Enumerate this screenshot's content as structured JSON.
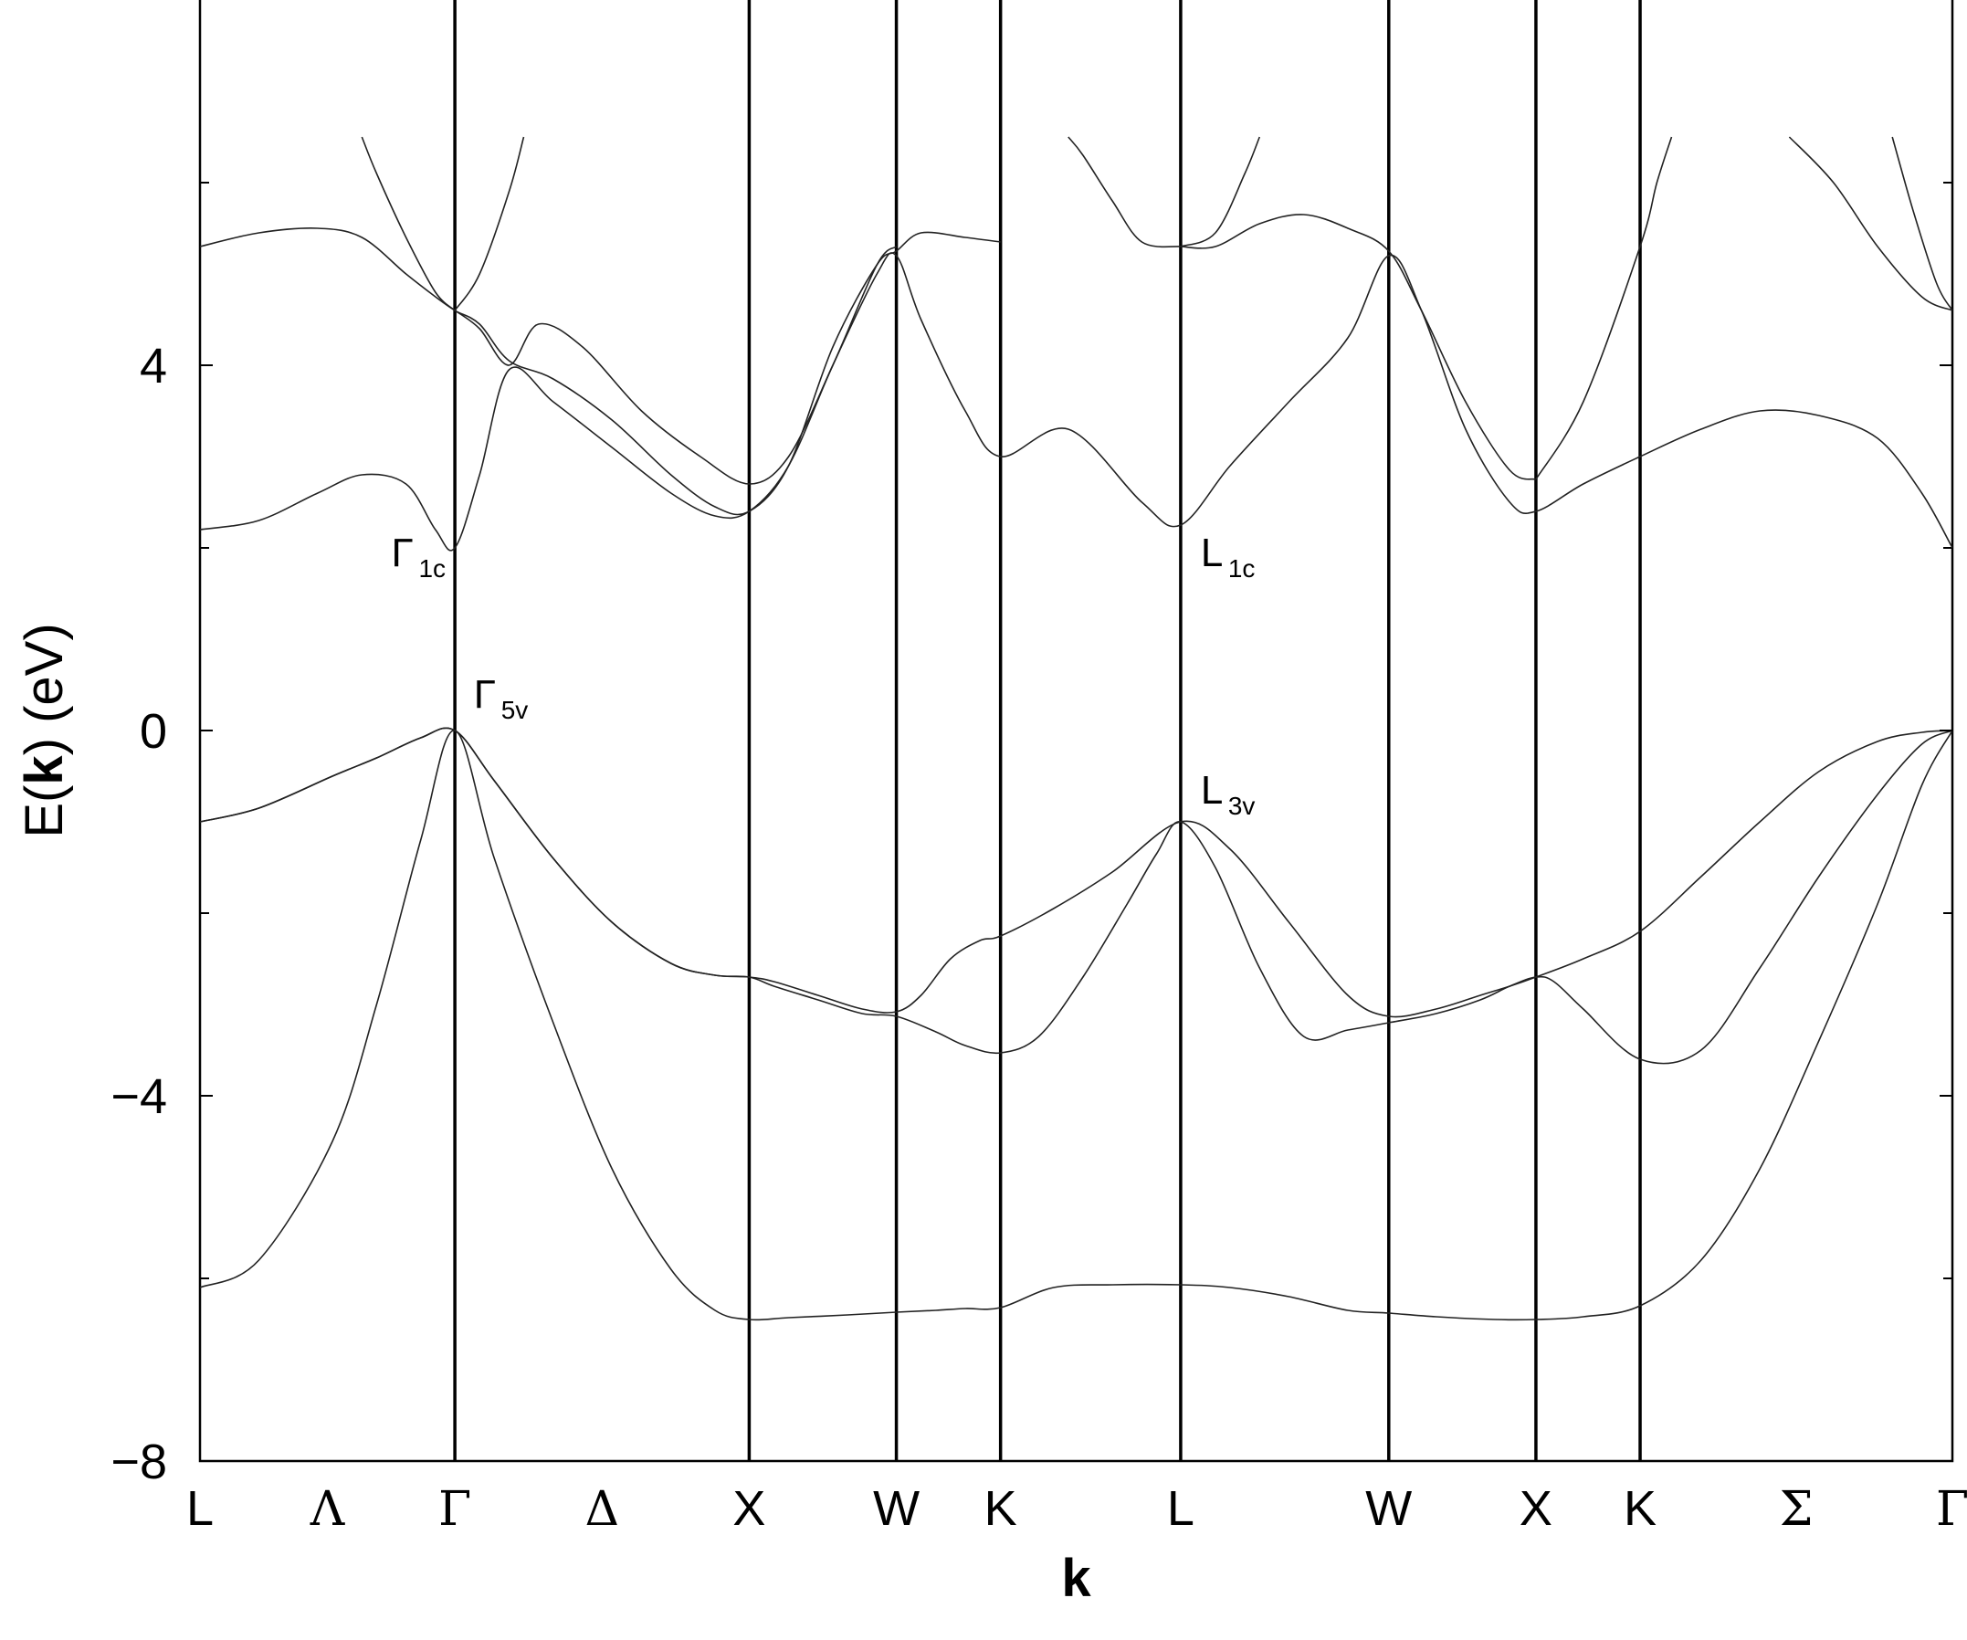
{
  "chart_data": {
    "type": "line",
    "title": "",
    "xlabel": "k",
    "ylabel": "E(k)  (eV)",
    "ylabel_parts": {
      "prefix": "E(",
      "bold": "k",
      "suffix": ")  (eV)"
    },
    "ylim": [
      -8,
      8
    ],
    "yticks": [
      {
        "value": 4,
        "label": "4"
      },
      {
        "value": 0,
        "label": "0"
      },
      {
        "value": -4,
        "label": "−4"
      },
      {
        "value": -8,
        "label": "−8"
      }
    ],
    "yminor": [
      6,
      2,
      -2,
      -6
    ],
    "grid": false,
    "legend": "none",
    "kpoints": [
      {
        "x": 0.0,
        "label": "L",
        "line": false
      },
      {
        "x": 0.866,
        "label": "Γ",
        "line": true
      },
      {
        "x": 1.866,
        "label": "X",
        "line": true
      },
      {
        "x": 2.366,
        "label": "W",
        "line": true
      },
      {
        "x": 2.72,
        "label": "K",
        "line": true
      },
      {
        "x": 3.332,
        "label": "L",
        "line": true
      },
      {
        "x": 4.039,
        "label": "W",
        "line": true
      },
      {
        "x": 4.539,
        "label": "X",
        "line": true
      },
      {
        "x": 4.893,
        "label": "K",
        "line": true
      },
      {
        "x": 5.954,
        "label": "Γ",
        "line": false
      }
    ],
    "symmetry_labels": [
      {
        "x": 0.433,
        "label": "Λ"
      },
      {
        "x": 1.366,
        "label": "Δ"
      },
      {
        "x": 5.424,
        "label": "Σ"
      }
    ],
    "annotations": [
      {
        "main": "Γ",
        "sub": "1c",
        "x": 0.65,
        "y": 1.8
      },
      {
        "main": "Γ",
        "sub": "5v",
        "x": 0.93,
        "y": 0.25
      },
      {
        "main": "L",
        "sub": "1c",
        "x": 3.4,
        "y": 1.8
      },
      {
        "main": "L",
        "sub": "3v",
        "x": 3.4,
        "y": -0.8
      }
    ],
    "series": [
      {
        "x": [
          0,
          0.2,
          0.45,
          0.6,
          0.75,
          0.866,
          1.0,
          1.2,
          1.4,
          1.6,
          1.75,
          1.866,
          2.0,
          2.2,
          2.366,
          2.5,
          2.6,
          2.72,
          2.9,
          3.1,
          3.332,
          3.5,
          3.7,
          3.9,
          4.039,
          4.2,
          4.4,
          4.539,
          4.7,
          4.893,
          5.1,
          5.3,
          5.5,
          5.7,
          5.85,
          5.954
        ],
        "y": [
          -6.1,
          -5.8,
          -4.5,
          -3.0,
          -1.2,
          0.0,
          -1.4,
          -3.2,
          -4.8,
          -5.9,
          -6.35,
          -6.45,
          -6.43,
          -6.4,
          -6.37,
          -6.35,
          -6.33,
          -6.32,
          -6.1,
          -6.07,
          -6.07,
          -6.1,
          -6.2,
          -6.35,
          -6.38,
          -6.42,
          -6.45,
          -6.45,
          -6.42,
          -6.3,
          -5.8,
          -4.8,
          -3.4,
          -1.9,
          -0.6,
          0.0
        ]
      },
      {
        "x": [
          0,
          0.2,
          0.45,
          0.6,
          0.75,
          0.866,
          1.0,
          1.2,
          1.4,
          1.6,
          1.75,
          1.866,
          1.95,
          2.1,
          2.25,
          2.366,
          2.5,
          2.6,
          2.72,
          2.85,
          3.0,
          3.15,
          3.25,
          3.332,
          3.45,
          3.6,
          3.75,
          3.9,
          4.039,
          4.2,
          4.35,
          4.45,
          4.539,
          4.6,
          4.7,
          4.893,
          5.1,
          5.3,
          5.5,
          5.7,
          5.85,
          5.954
        ],
        "y": [
          -1.0,
          -0.85,
          -0.5,
          -0.3,
          -0.08,
          0.0,
          -0.55,
          -1.4,
          -2.1,
          -2.55,
          -2.68,
          -2.7,
          -2.8,
          -2.95,
          -3.1,
          -3.13,
          -3.3,
          -3.45,
          -3.53,
          -3.35,
          -2.7,
          -1.9,
          -1.35,
          -1.0,
          -1.5,
          -2.6,
          -3.35,
          -3.28,
          -3.2,
          -3.1,
          -2.95,
          -2.8,
          -2.7,
          -2.75,
          -3.05,
          -3.6,
          -3.5,
          -2.6,
          -1.6,
          -0.7,
          -0.15,
          0.0
        ]
      },
      {
        "x": [
          0,
          0.2,
          0.45,
          0.6,
          0.75,
          0.866,
          1.0,
          1.2,
          1.4,
          1.6,
          1.75,
          1.866,
          1.95,
          2.1,
          2.25,
          2.366,
          2.45,
          2.55,
          2.65,
          2.72,
          2.9,
          3.1,
          3.332,
          3.5,
          3.7,
          3.9,
          4.039,
          4.2,
          4.35,
          4.45,
          4.539,
          4.7,
          4.893,
          5.1,
          5.3,
          5.5,
          5.7,
          5.85,
          5.954
        ],
        "y": [
          -1.0,
          -0.85,
          -0.5,
          -0.3,
          -0.08,
          0.0,
          -0.55,
          -1.4,
          -2.1,
          -2.55,
          -2.68,
          -2.7,
          -2.75,
          -2.9,
          -3.05,
          -3.08,
          -2.9,
          -2.5,
          -2.3,
          -2.25,
          -1.95,
          -1.55,
          -1.0,
          -1.3,
          -2.1,
          -2.9,
          -3.13,
          -3.05,
          -2.9,
          -2.8,
          -2.7,
          -2.5,
          -2.2,
          -1.6,
          -1.0,
          -0.45,
          -0.12,
          -0.02,
          0.0
        ]
      },
      {
        "x": [
          0,
          0.2,
          0.4,
          0.55,
          0.7,
          0.8,
          0.866,
          0.95,
          1.05,
          1.2,
          1.4,
          1.6,
          1.75,
          1.866,
          2.0,
          2.15,
          2.3,
          2.366,
          2.45,
          2.6,
          2.72,
          2.95,
          3.2,
          3.332,
          3.5,
          3.7,
          3.9,
          4.039,
          4.15,
          4.3,
          4.45,
          4.539,
          4.7,
          4.893,
          5.1,
          5.3,
          5.5,
          5.7,
          5.85,
          5.954
        ],
        "y": [
          2.2,
          2.3,
          2.6,
          2.8,
          2.7,
          2.2,
          2.0,
          2.8,
          3.95,
          3.6,
          3.1,
          2.6,
          2.35,
          2.4,
          2.9,
          4.0,
          5.0,
          5.2,
          4.5,
          3.5,
          3.0,
          3.3,
          2.5,
          2.25,
          2.9,
          3.6,
          4.3,
          5.2,
          4.6,
          3.3,
          2.5,
          2.4,
          2.7,
          3.0,
          3.3,
          3.5,
          3.45,
          3.2,
          2.6,
          2.0
        ]
      },
      {
        "x": [
          0,
          0.2,
          0.4,
          0.55,
          0.7,
          0.8,
          0.866,
          0.95,
          1.05,
          1.2,
          1.4,
          1.6,
          1.75,
          1.866,
          2.0,
          2.15,
          2.3,
          2.366,
          2.45,
          2.6,
          2.72
        ],
        "y": [
          5.3,
          5.45,
          5.5,
          5.4,
          5.0,
          4.75,
          4.6,
          4.45,
          4.05,
          3.85,
          3.4,
          2.8,
          2.45,
          2.4,
          2.9,
          4.2,
          5.1,
          5.25,
          5.45,
          5.4,
          5.35
        ]
      },
      {
        "x": [
          0.866,
          0.95,
          1.05,
          1.15,
          1.3,
          1.5,
          1.7,
          1.866,
          2.0,
          2.15,
          2.3,
          2.366
        ],
        "y": [
          4.6,
          4.4,
          4.0,
          4.45,
          4.2,
          3.5,
          3.0,
          2.7,
          3.0,
          4.0,
          5.1,
          5.3
        ]
      },
      {
        "x": [
          0.866,
          0.8,
          0.7,
          0.6,
          0.55
        ],
        "y": [
          4.6,
          4.8,
          5.4,
          6.1,
          6.5
        ]
      },
      {
        "x": [
          0.866,
          0.95,
          1.05,
          1.1
        ],
        "y": [
          4.6,
          5.0,
          5.9,
          6.5
        ]
      },
      {
        "x": [
          3.332,
          3.45,
          3.6,
          3.75,
          3.9,
          4.039,
          4.15,
          4.3,
          4.45,
          4.539
        ],
        "y": [
          5.3,
          5.3,
          5.55,
          5.65,
          5.5,
          5.25,
          4.6,
          3.6,
          2.85,
          2.75
        ]
      },
      {
        "x": [
          3.332,
          3.2,
          3.1,
          3.0,
          2.95
        ],
        "y": [
          5.3,
          5.35,
          5.8,
          6.3,
          6.5
        ]
      },
      {
        "x": [
          3.332,
          3.45,
          3.55,
          3.6
        ],
        "y": [
          5.3,
          5.45,
          6.1,
          6.5
        ]
      },
      {
        "x": [
          4.539,
          4.7,
          4.893,
          4.95,
          5.0
        ],
        "y": [
          2.75,
          3.6,
          5.3,
          6.0,
          6.5
        ]
      },
      {
        "x": [
          5.954,
          5.85,
          5.7,
          5.55,
          5.4
        ],
        "y": [
          4.6,
          4.75,
          5.3,
          6.0,
          6.5
        ]
      },
      {
        "x": [
          5.954,
          5.9,
          5.82,
          5.75
        ],
        "y": [
          4.6,
          4.9,
          5.7,
          6.5
        ]
      }
    ]
  }
}
